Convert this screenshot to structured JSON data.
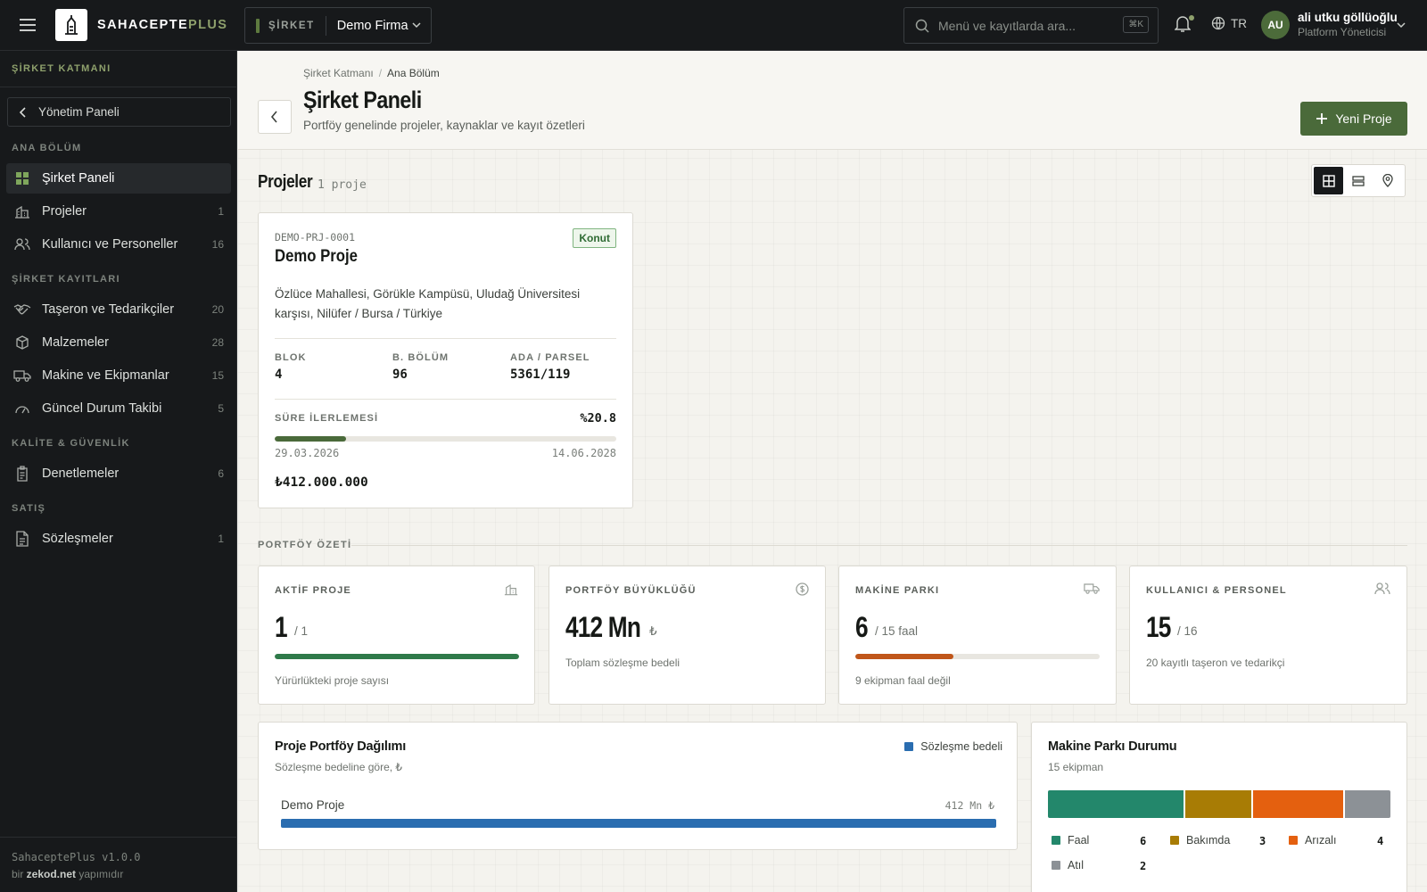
{
  "brand": {
    "name": "SAHACEPTE",
    "plus": "PLUS"
  },
  "company": {
    "tag": "ŞİRKET",
    "name": "Demo Firma"
  },
  "search": {
    "placeholder": "Menü ve kayıtlarda ara...",
    "shortcut": "⌘K"
  },
  "language": "TR",
  "user": {
    "initials": "AU",
    "name": "ali utku göllüoğlu",
    "role": "Platform Yöneticisi"
  },
  "sidebar": {
    "header": "ŞİRKET KATMANI",
    "back": "Yönetim Paneli",
    "sections": [
      {
        "title": "ANA BÖLÜM"
      },
      {
        "title": "ŞİRKET KAYITLARI"
      },
      {
        "title": "KALİTE & GÜVENLİK"
      },
      {
        "title": "SATIŞ"
      }
    ],
    "items": [
      {
        "label": "Şirket Paneli",
        "count": ""
      },
      {
        "label": "Projeler",
        "count": "1"
      },
      {
        "label": "Kullanıcı ve Personeller",
        "count": "16"
      },
      {
        "label": "Taşeron ve Tedarikçiler",
        "count": "20"
      },
      {
        "label": "Malzemeler",
        "count": "28"
      },
      {
        "label": "Makine ve Ekipmanlar",
        "count": "15"
      },
      {
        "label": "Güncel Durum Takibi",
        "count": "5"
      },
      {
        "label": "Denetlemeler",
        "count": "6"
      },
      {
        "label": "Sözleşmeler",
        "count": "1"
      }
    ],
    "version": "SahaceptePlus v1.0.0",
    "credit_pre": "bir ",
    "credit_brand": "zekod.net",
    "credit_post": " yapımıdır"
  },
  "page": {
    "breadcrumb": [
      "Şirket Katmanı",
      "Ana Bölüm"
    ],
    "title": "Şirket Paneli",
    "subtitle": "Portföy genelinde projeler, kaynaklar ve kayıt özetleri",
    "new_button": "Yeni Proje"
  },
  "projects": {
    "title": "Projeler",
    "count": "1 proje",
    "card": {
      "code": "DEMO-PRJ-0001",
      "name": "Demo Proje",
      "tag": "Konut",
      "address": "Özlüce Mahallesi, Görükle Kampüsü, Uludağ Üniversitesi karşısı, Nilüfer / Bursa / Türkiye",
      "stats": [
        {
          "label": "BLOK",
          "value": "4"
        },
        {
          "label": "B. BÖLÜM",
          "value": "96"
        },
        {
          "label": "ADA / PARSEL",
          "value": "5361/119"
        }
      ],
      "progress_label": "SÜRE İLERLEMESİ",
      "progress_text": "%20.8",
      "progress": 0.208,
      "start_date": "29.03.2026",
      "end_date": "14.06.2028",
      "budget": "₺412.000.000"
    }
  },
  "portfolio": {
    "label": "PORTFÖY ÖZETİ",
    "kpis": [
      {
        "label": "AKTİF PROJE",
        "value": "1",
        "suffix": "/ 1",
        "note": "Yürürlükteki proje sayısı",
        "bar": 1.0,
        "color": "#2f7a4a"
      },
      {
        "label": "PORTFÖY BÜYÜKLÜĞÜ",
        "value": "412 Mn",
        "suffix": "₺",
        "note": "Toplam sözleşme bedeli"
      },
      {
        "label": "MAKİNE PARKI",
        "value": "6",
        "suffix": "/ 15 faal",
        "note": "9 ekipman faal değil",
        "bar": 0.4,
        "color": "#c0561a"
      },
      {
        "label": "KULLANICI & PERSONEL",
        "value": "15",
        "suffix": "/ 16",
        "note": "20 kayıtlı taşeron ve tedarikçi"
      }
    ]
  },
  "portfolio_chart": {
    "title": "Proje Portföy Dağılımı",
    "subtitle": "Sözleşme bedeline göre, ₺",
    "legend": "Sözleşme bedeli",
    "color": "#2a6db0"
  },
  "chart_data": [
    {
      "type": "bar",
      "title": "Proje Portföy Dağılımı",
      "subtitle": "Sözleşme bedeline göre, ₺",
      "categories": [
        "Demo Proje"
      ],
      "series": [
        {
          "name": "Sözleşme bedeli",
          "values": [
            412
          ]
        }
      ],
      "value_labels": [
        "412 Mn ₺"
      ]
    },
    {
      "type": "bar",
      "title": "Makine Parkı Durumu",
      "subtitle": "15 ekipman",
      "categories": [
        "Faal",
        "Bakımda",
        "Arızalı",
        "Atıl"
      ],
      "values": [
        6,
        3,
        4,
        2
      ],
      "colors": [
        "#23876b",
        "#a87c05",
        "#e4600f",
        "#8c9196"
      ]
    }
  ]
}
